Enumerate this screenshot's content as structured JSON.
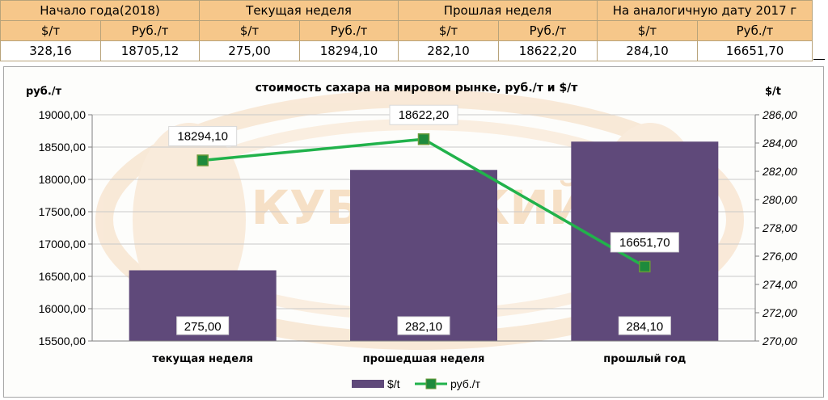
{
  "table": {
    "periods": [
      "Начало года(2018)",
      "Текущая неделя",
      "Прошлая неделя",
      "На аналогичную дату 2017 г"
    ],
    "units": [
      "$/т",
      "Руб./т",
      "$/т",
      "Руб./т",
      "$/т",
      "Руб./т",
      "$/т",
      "Руб./т"
    ],
    "values": [
      "328,16",
      "18705,12",
      "275,00",
      "18294,10",
      "282,10",
      "18622,20",
      "284,10",
      "16651,70"
    ]
  },
  "chart_data": {
    "type": "bar",
    "title": "стоимость сахара на мировом рынке, руб./т и $/т",
    "left_axis_title": "руб./т",
    "right_axis_title": "$/t",
    "categories": [
      "текущая неделя",
      "прошедшая неделя",
      "прошлый год"
    ],
    "series": [
      {
        "name": "$/t",
        "type": "bar",
        "axis": "right",
        "values": [
          275.0,
          282.1,
          284.1
        ],
        "labels": [
          "275,00",
          "282,10",
          "284,10"
        ],
        "color": "#5f497a"
      },
      {
        "name": "руб./т",
        "type": "line",
        "axis": "left",
        "values": [
          18294.1,
          18622.2,
          16651.7
        ],
        "labels": [
          "18294,10",
          "18622,20",
          "16651,70"
        ],
        "color": "#21b24b",
        "marker_color": "#1e8a3c"
      }
    ],
    "left_ylim": [
      15500,
      19000
    ],
    "left_ticks": [
      "15500,00",
      "16000,00",
      "16500,00",
      "17000,00",
      "17500,00",
      "18000,00",
      "18500,00",
      "19000,00"
    ],
    "right_ylim": [
      270,
      286
    ],
    "right_ticks": [
      "270,00",
      "272,00",
      "274,00",
      "276,00",
      "278,00",
      "280,00",
      "282,00",
      "284,00",
      "286,00"
    ],
    "grid": true,
    "legend_position": "bottom",
    "watermark": "КУБАНСКИЙ"
  }
}
